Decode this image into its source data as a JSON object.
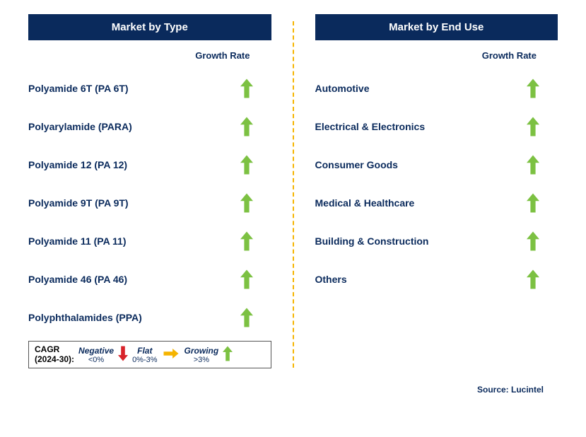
{
  "colors": {
    "header_bg": "#0a2a5c",
    "text_navy": "#0a2a5c",
    "label_navy": "#0a2a5c",
    "arrow_green": "#7cc142",
    "arrow_red": "#d8232a",
    "arrow_yellow": "#f5b400",
    "divider": "#f5b400",
    "black": "#000000"
  },
  "left": {
    "title": "Market by Type",
    "growth_header": "Growth Rate",
    "rows": [
      {
        "label": "Polyamide 6T (PA 6T)",
        "arrow": "up"
      },
      {
        "label": "Polyarylamide (PARA)",
        "arrow": "up"
      },
      {
        "label": "Polyamide 12 (PA 12)",
        "arrow": "up"
      },
      {
        "label": "Polyamide 9T (PA 9T)",
        "arrow": "up"
      },
      {
        "label": "Polyamide 11 (PA 11)",
        "arrow": "up"
      },
      {
        "label": "Polyamide 46 (PA 46)",
        "arrow": "up"
      },
      {
        "label": "Polyphthalamides (PPA)",
        "arrow": "up"
      }
    ]
  },
  "right": {
    "title": "Market by End Use",
    "growth_header": "Growth Rate",
    "rows": [
      {
        "label": "Automotive",
        "arrow": "up"
      },
      {
        "label": "Electrical & Electronics",
        "arrow": "up"
      },
      {
        "label": "Consumer Goods",
        "arrow": "up"
      },
      {
        "label": "Medical & Healthcare",
        "arrow": "up"
      },
      {
        "label": "Building & Construction",
        "arrow": "up"
      },
      {
        "label": "Others",
        "arrow": "up"
      }
    ]
  },
  "legend": {
    "title_l1": "CAGR",
    "title_l2": "(2024-30):",
    "neg_label": "Negative",
    "neg_range": "<0%",
    "flat_label": "Flat",
    "flat_range": "0%-3%",
    "grow_label": "Growing",
    "grow_range": ">3%"
  },
  "source": "Source: Lucintel"
}
